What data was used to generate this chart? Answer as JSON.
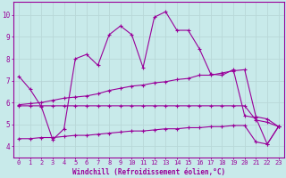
{
  "background_color": "#c8eaea",
  "grid_color": "#b8d8d8",
  "line_color": "#990099",
  "xlabel": "Windchill (Refroidissement éolien,°C)",
  "xlabel_fontsize": 5.5,
  "xtick_fontsize": 5,
  "ytick_fontsize": 5.5,
  "ylim": [
    3.5,
    10.6
  ],
  "xlim": [
    -0.5,
    23.5
  ],
  "yticks": [
    4,
    5,
    6,
    7,
    8,
    9,
    10
  ],
  "xticks": [
    0,
    1,
    2,
    3,
    4,
    5,
    6,
    7,
    8,
    9,
    10,
    11,
    12,
    13,
    14,
    15,
    16,
    17,
    18,
    19,
    20,
    21,
    22,
    23
  ],
  "line1_x": [
    0,
    1,
    2,
    3,
    4,
    5,
    6,
    7,
    8,
    9,
    10,
    11,
    12,
    13,
    14,
    15,
    16,
    17,
    18,
    19,
    20,
    21,
    22,
    23
  ],
  "line1_y": [
    7.2,
    6.6,
    5.8,
    4.3,
    4.8,
    8.0,
    8.2,
    7.7,
    9.1,
    9.5,
    9.1,
    7.6,
    9.9,
    10.15,
    9.3,
    9.3,
    8.45,
    7.3,
    7.25,
    7.5,
    5.4,
    5.3,
    4.1,
    4.9
  ],
  "line2_x": [
    0,
    1,
    2,
    3,
    4,
    5,
    6,
    7,
    8,
    9,
    10,
    11,
    12,
    13,
    14,
    15,
    16,
    17,
    18,
    19,
    20,
    21,
    22,
    23
  ],
  "line2_y": [
    5.9,
    5.95,
    6.0,
    6.1,
    6.2,
    6.25,
    6.3,
    6.4,
    6.55,
    6.65,
    6.75,
    6.8,
    6.9,
    6.95,
    7.05,
    7.1,
    7.25,
    7.25,
    7.35,
    7.45,
    7.5,
    5.35,
    5.25,
    4.9
  ],
  "line3_x": [
    0,
    1,
    2,
    3,
    4,
    5,
    6,
    7,
    8,
    9,
    10,
    11,
    12,
    13,
    14,
    15,
    16,
    17,
    18,
    19,
    20,
    21,
    22,
    23
  ],
  "line3_y": [
    5.85,
    5.85,
    5.85,
    5.85,
    5.85,
    5.85,
    5.85,
    5.85,
    5.85,
    5.85,
    5.85,
    5.85,
    5.85,
    5.85,
    5.85,
    5.85,
    5.85,
    5.85,
    5.85,
    5.85,
    5.85,
    5.2,
    5.1,
    4.9
  ],
  "line4_x": [
    0,
    1,
    2,
    3,
    4,
    5,
    6,
    7,
    8,
    9,
    10,
    11,
    12,
    13,
    14,
    15,
    16,
    17,
    18,
    19,
    20,
    21,
    22,
    23
  ],
  "line4_y": [
    4.35,
    4.35,
    4.4,
    4.4,
    4.45,
    4.5,
    4.5,
    4.55,
    4.6,
    4.65,
    4.7,
    4.7,
    4.75,
    4.8,
    4.8,
    4.85,
    4.85,
    4.9,
    4.9,
    4.95,
    4.95,
    4.2,
    4.1,
    4.9
  ]
}
